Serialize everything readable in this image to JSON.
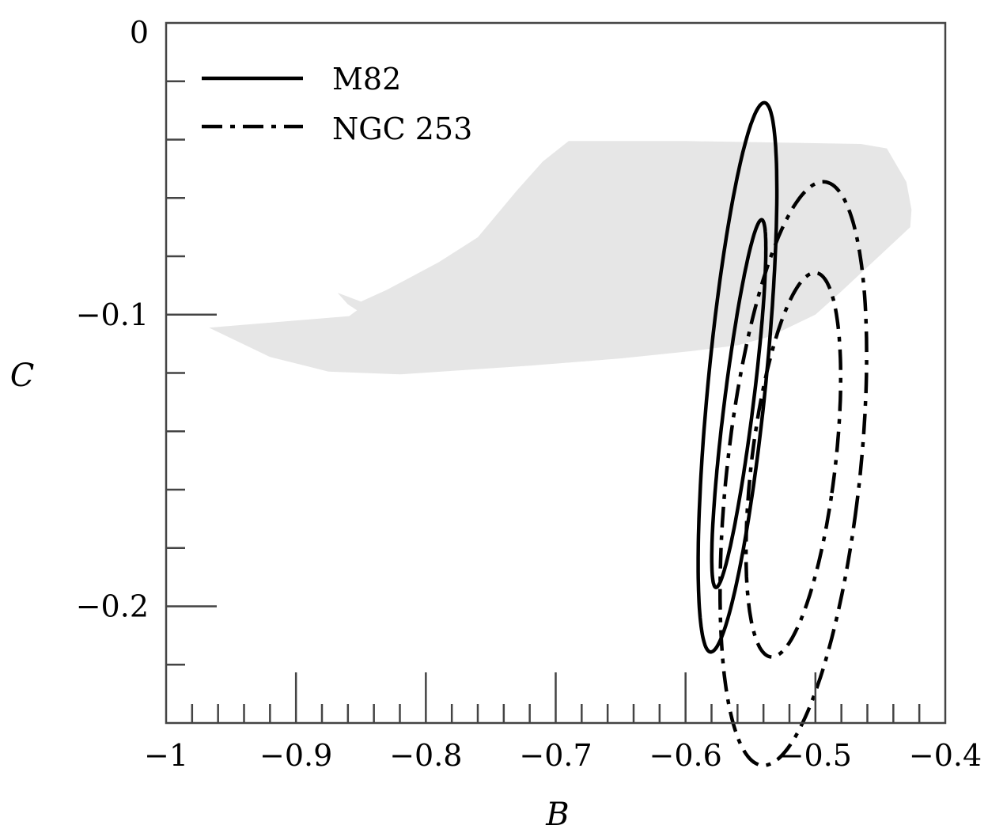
{
  "chart_data": {
    "type": "line",
    "xlabel": "B",
    "ylabel": "C",
    "xlim": [
      -1.0,
      -0.4
    ],
    "ylim": [
      -0.24,
      0.0
    ],
    "x_ticks": [
      {
        "value": -1.0,
        "label": "−1"
      },
      {
        "value": -0.9,
        "label": "−0.9"
      },
      {
        "value": -0.8,
        "label": "−0.8"
      },
      {
        "value": -0.7,
        "label": "−0.7"
      },
      {
        "value": -0.6,
        "label": "−0.6"
      },
      {
        "value": -0.5,
        "label": "−0.5"
      },
      {
        "value": -0.4,
        "label": "−0.4"
      }
    ],
    "x_minor_step": 0.02,
    "y_ticks": [
      {
        "value": 0.0,
        "label": "0"
      },
      {
        "value": -0.1,
        "label": "−0.1"
      },
      {
        "value": -0.2,
        "label": "−0.2"
      }
    ],
    "y_minor_step": 0.02,
    "grid": false,
    "legend_position": "top-left",
    "shaded_region": {
      "fill": "#e6e6e6",
      "points": [
        [
          -0.967,
          -0.1045
        ],
        [
          -0.92,
          -0.1145
        ],
        [
          -0.875,
          -0.1195
        ],
        [
          -0.82,
          -0.1205
        ],
        [
          -0.72,
          -0.1175
        ],
        [
          -0.65,
          -0.115
        ],
        [
          -0.595,
          -0.1125
        ],
        [
          -0.56,
          -0.1105
        ],
        [
          -0.535,
          -0.1075
        ],
        [
          -0.5,
          -0.1
        ],
        [
          -0.48,
          -0.092
        ],
        [
          -0.445,
          -0.0775
        ],
        [
          -0.427,
          -0.07
        ],
        [
          -0.426,
          -0.064
        ],
        [
          -0.43,
          -0.0545
        ],
        [
          -0.445,
          -0.043
        ],
        [
          -0.465,
          -0.0415
        ],
        [
          -0.6,
          -0.0405
        ],
        [
          -0.69,
          -0.0405
        ],
        [
          -0.71,
          -0.0475
        ],
        [
          -0.73,
          -0.0575
        ],
        [
          -0.76,
          -0.0735
        ],
        [
          -0.79,
          -0.082
        ],
        [
          -0.83,
          -0.0915
        ],
        [
          -0.85,
          -0.0955
        ],
        [
          -0.868,
          -0.0925
        ],
        [
          -0.86,
          -0.0965
        ],
        [
          -0.853,
          -0.0985
        ],
        [
          -0.859,
          -0.1005
        ]
      ]
    },
    "series": [
      {
        "name": "M82",
        "style": "solid",
        "color": "#000000",
        "contours": [
          {
            "cx": -0.559,
            "cy": -0.1305,
            "rx": 0.0108,
            "ry": 0.0655,
            "tilt_deg": -16
          },
          {
            "cx": -0.56,
            "cy": -0.1215,
            "rx": 0.0217,
            "ry": 0.0965,
            "tilt_deg": -13
          }
        ]
      },
      {
        "name": "NGC 253",
        "style": "dashdot",
        "color": "#000000",
        "contours": [
          {
            "cx": -0.517,
            "cy": -0.1515,
            "rx": 0.0312,
            "ry": 0.0685,
            "tilt_deg": -18
          },
          {
            "cx": -0.517,
            "cy": -0.1545,
            "rx": 0.0498,
            "ry": 0.1035,
            "tilt_deg": -17
          }
        ]
      }
    ]
  }
}
